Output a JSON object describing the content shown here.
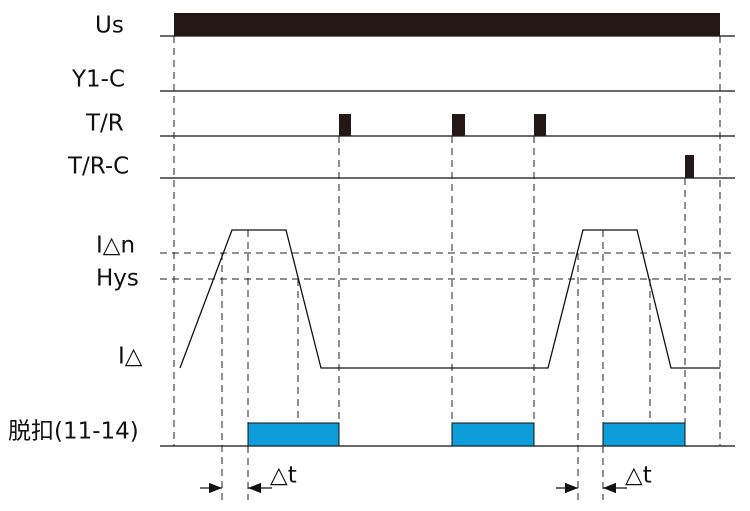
{
  "signals": {
    "us": "Us",
    "y1c": "Y1-C",
    "tr": "T/R",
    "trc": "T/R-C",
    "i_delta_n": "I△n",
    "hys": "Hys",
    "i_delta": "I△",
    "trip": "脱扣(11-14)"
  },
  "delay_labels": [
    "△t",
    "△t"
  ]
}
